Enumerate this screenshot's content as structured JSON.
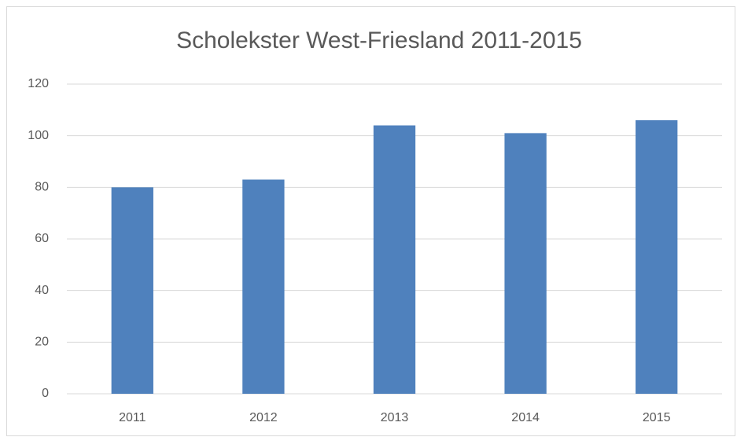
{
  "chart_data": {
    "type": "bar",
    "title": "Scholekster West-Friesland 2011-2015",
    "categories": [
      "2011",
      "2012",
      "2013",
      "2014",
      "2015"
    ],
    "values": [
      80,
      83,
      104,
      101,
      106
    ],
    "color": "#4f81bd",
    "ylim": [
      0,
      120
    ],
    "yticks": [
      0,
      20,
      40,
      60,
      80,
      100,
      120
    ],
    "grid": true
  }
}
